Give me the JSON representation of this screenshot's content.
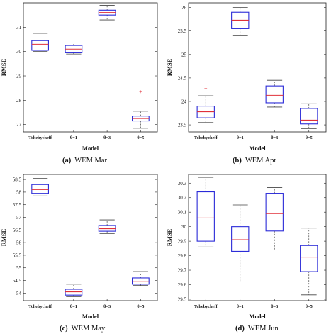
{
  "chart_data": [
    {
      "type": "box",
      "caption_letter": "(a)",
      "caption_text": "WEM Mar",
      "ylabel": "RMSE",
      "xlabel": "Model",
      "categories": [
        "Tchebycheff",
        "θ=1",
        "θ=3",
        "θ=5"
      ],
      "ylim": [
        26.7,
        32.0
      ],
      "yticks": [
        27,
        28,
        29,
        30,
        31
      ],
      "boxes": [
        {
          "category": "Tchebycheff",
          "whisker_low": 30.0,
          "q1": 30.05,
          "median": 30.3,
          "q3": 30.45,
          "whisker_high": 30.75,
          "outliers": []
        },
        {
          "category": "θ=1",
          "whisker_low": 29.9,
          "q1": 29.95,
          "median": 30.1,
          "q3": 30.25,
          "whisker_high": 30.35,
          "outliers": []
        },
        {
          "category": "θ=3",
          "whisker_low": 31.3,
          "q1": 31.5,
          "median": 31.6,
          "q3": 31.7,
          "whisker_high": 31.9,
          "outliers": []
        },
        {
          "category": "θ=5",
          "whisker_low": 26.85,
          "q1": 27.15,
          "median": 27.25,
          "q3": 27.35,
          "whisker_high": 27.55,
          "outliers": [
            28.35
          ]
        }
      ]
    },
    {
      "type": "box",
      "caption_letter": "(b)",
      "caption_text": "WEM Apr",
      "ylabel": "RMSE",
      "xlabel": "Model",
      "categories": [
        "Tchebycheff",
        "θ=1",
        "θ=3",
        "θ=5"
      ],
      "ylim": [
        23.35,
        26.1
      ],
      "yticks": [
        23.5,
        24,
        24.5,
        25,
        25.5,
        26
      ],
      "boxes": [
        {
          "category": "Tchebycheff",
          "whisker_low": 23.55,
          "q1": 23.65,
          "median": 23.78,
          "q3": 23.9,
          "whisker_high": 24.12,
          "outliers": [
            24.27
          ]
        },
        {
          "category": "θ=1",
          "whisker_low": 25.4,
          "q1": 25.55,
          "median": 25.73,
          "q3": 25.9,
          "whisker_high": 26.0,
          "outliers": []
        },
        {
          "category": "θ=3",
          "whisker_low": 23.88,
          "q1": 23.97,
          "median": 24.13,
          "q3": 24.33,
          "whisker_high": 24.45,
          "outliers": []
        },
        {
          "category": "θ=5",
          "whisker_low": 23.42,
          "q1": 23.52,
          "median": 23.6,
          "q3": 23.85,
          "whisker_high": 23.95,
          "outliers": []
        }
      ]
    },
    {
      "type": "box",
      "caption_letter": "(c)",
      "caption_text": "WEM May",
      "ylabel": "RMSE",
      "xlabel": "Model",
      "categories": [
        "Tchebycheff",
        "θ=1",
        "θ=3",
        "θ=5"
      ],
      "ylim": [
        53.7,
        58.7
      ],
      "yticks": [
        54,
        54.5,
        55,
        55.5,
        56,
        56.5,
        57,
        57.5,
        58,
        58.5
      ],
      "boxes": [
        {
          "category": "Tchebycheff",
          "whisker_low": 57.85,
          "q1": 57.95,
          "median": 58.1,
          "q3": 58.3,
          "whisker_high": 58.55,
          "outliers": []
        },
        {
          "category": "θ=1",
          "whisker_low": 53.85,
          "q1": 53.92,
          "median": 54.05,
          "q3": 54.15,
          "whisker_high": 54.35,
          "outliers": []
        },
        {
          "category": "θ=3",
          "whisker_low": 56.35,
          "q1": 56.45,
          "median": 56.55,
          "q3": 56.68,
          "whisker_high": 56.9,
          "outliers": []
        },
        {
          "category": "θ=5",
          "whisker_low": 54.3,
          "q1": 54.35,
          "median": 54.45,
          "q3": 54.6,
          "whisker_high": 54.85,
          "outliers": []
        }
      ]
    },
    {
      "type": "box",
      "caption_letter": "(d)",
      "caption_text": "WEM Jun",
      "ylabel": "RMSE",
      "xlabel": "Model",
      "categories": [
        "Tchebycheff",
        "θ=1",
        "θ=3",
        "θ=5"
      ],
      "ylim": [
        29.49,
        30.36
      ],
      "yticks": [
        29.5,
        29.6,
        29.7,
        29.8,
        29.9,
        30,
        30.1,
        30.2,
        30.3
      ],
      "boxes": [
        {
          "category": "Tchebycheff",
          "whisker_low": 29.86,
          "q1": 29.9,
          "median": 30.06,
          "q3": 30.24,
          "whisker_high": 30.34,
          "outliers": []
        },
        {
          "category": "θ=1",
          "whisker_low": 29.62,
          "q1": 29.83,
          "median": 29.91,
          "q3": 30.0,
          "whisker_high": 30.15,
          "outliers": []
        },
        {
          "category": "θ=3",
          "whisker_low": 29.84,
          "q1": 29.97,
          "median": 30.09,
          "q3": 30.23,
          "whisker_high": 30.27,
          "outliers": []
        },
        {
          "category": "θ=5",
          "whisker_low": 29.53,
          "q1": 29.69,
          "median": 29.79,
          "q3": 29.87,
          "whisker_high": 29.99,
          "outliers": []
        }
      ]
    }
  ],
  "colors": {
    "box": "#2a2ad8",
    "median": "#e0303a",
    "whisker": "#444444",
    "outlier": "#e0303a",
    "axis": "#222222"
  }
}
